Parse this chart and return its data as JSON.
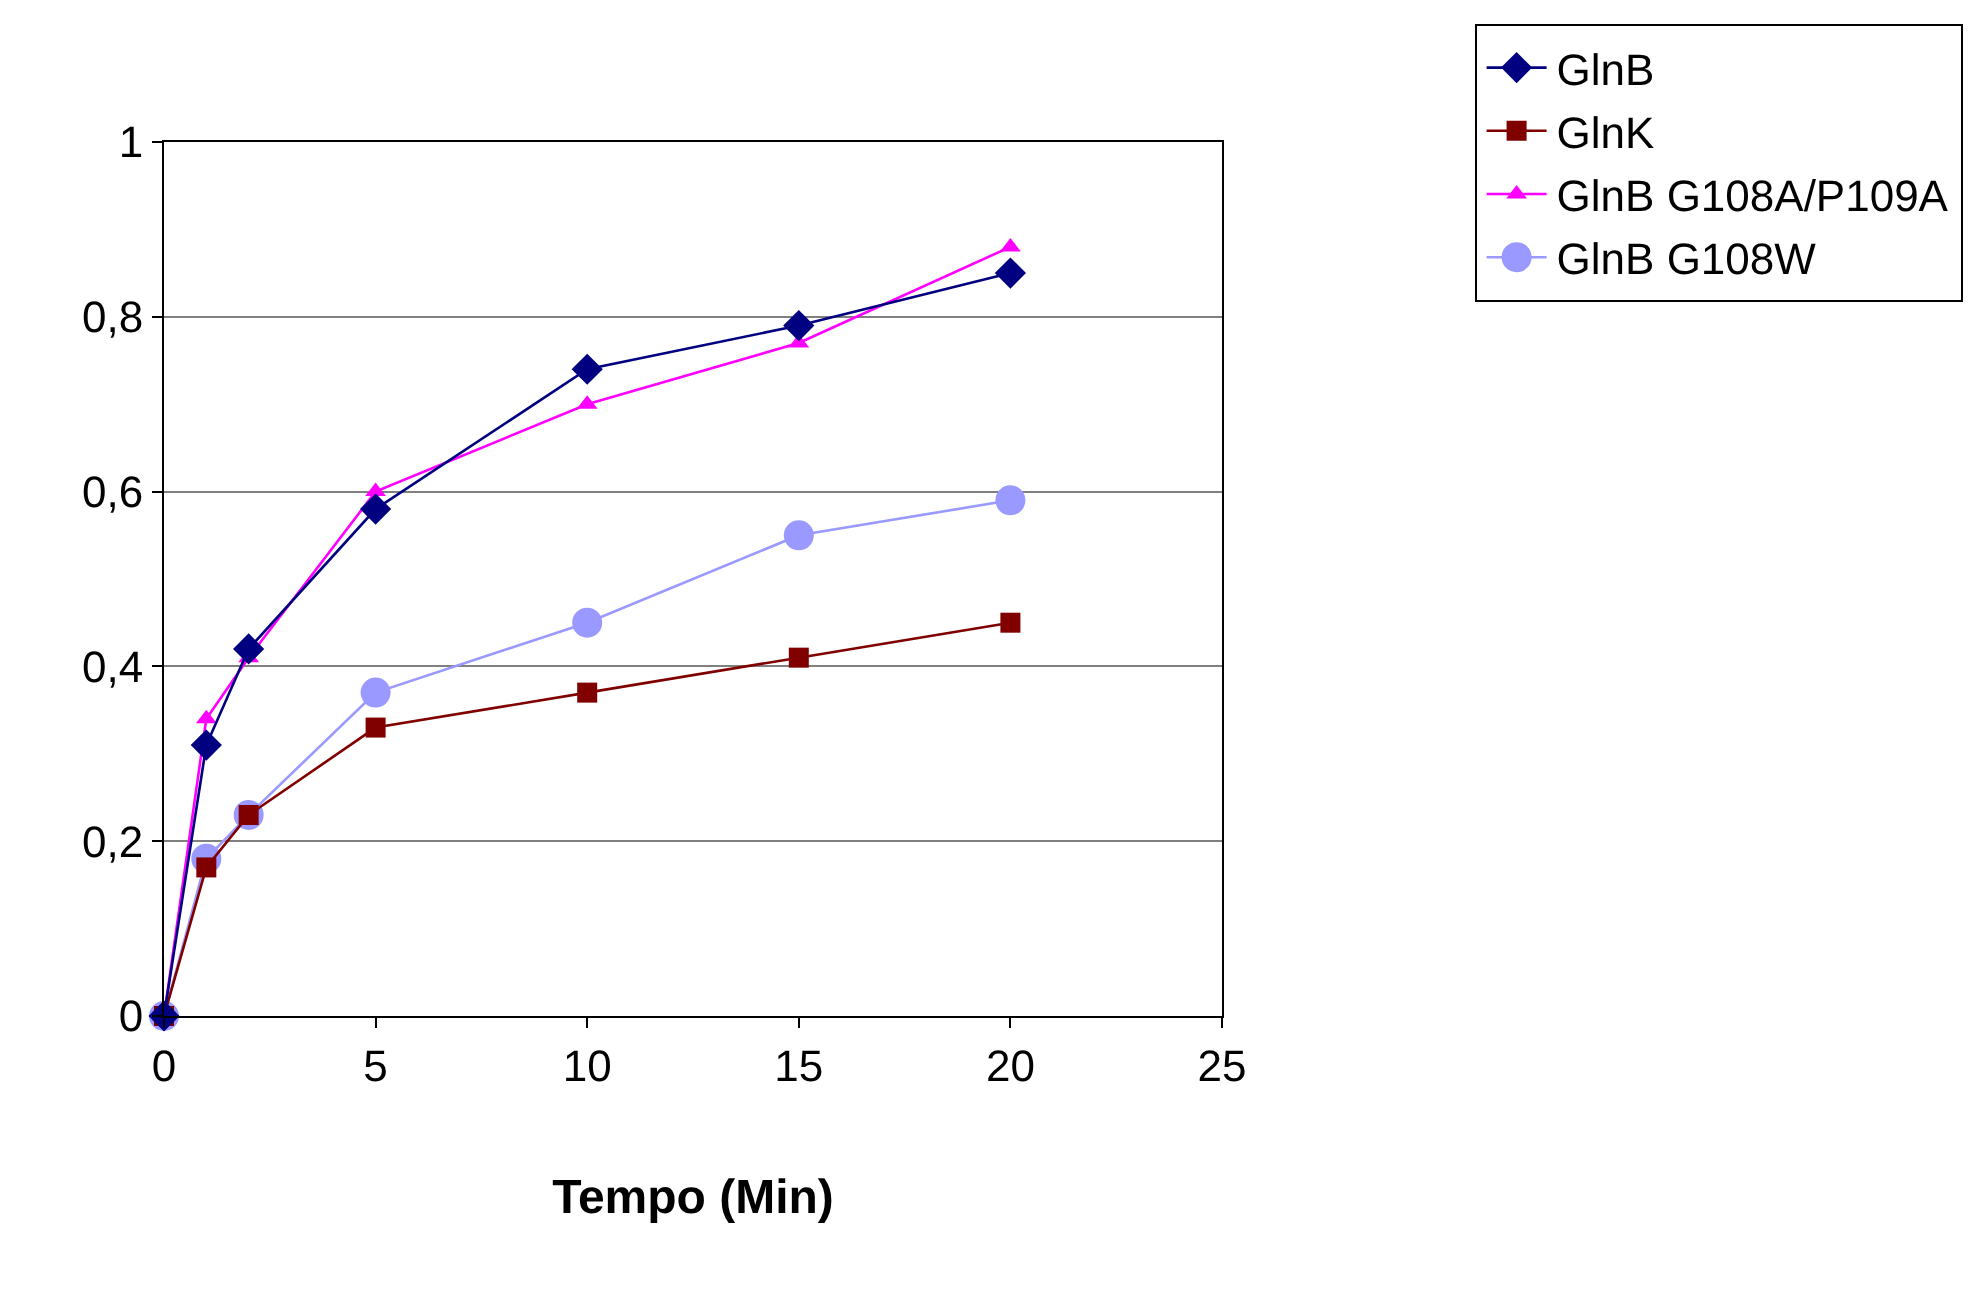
{
  "chart_data": {
    "type": "line",
    "xlabel": "Tempo (Min)",
    "x": [
      0,
      1,
      2,
      5,
      10,
      15,
      20
    ],
    "series": [
      {
        "name": "GlnB",
        "color": "#000080",
        "marker": "diamond",
        "values": [
          0,
          0.31,
          0.42,
          0.58,
          0.74,
          0.79,
          0.85
        ]
      },
      {
        "name": "GlnK",
        "color": "#800000",
        "marker": "square",
        "values": [
          0,
          0.17,
          0.23,
          0.33,
          0.37,
          0.41,
          0.45
        ]
      },
      {
        "name": "GlnB G108A/P109A",
        "color": "#ff00ff",
        "marker": "triangle",
        "values": [
          0,
          0.34,
          0.41,
          0.6,
          0.7,
          0.77,
          0.88
        ]
      },
      {
        "name": "GlnB G108W",
        "color": "#9999ff",
        "marker": "circle",
        "values": [
          0,
          0.18,
          0.23,
          0.37,
          0.45,
          0.55,
          0.59
        ]
      }
    ],
    "xlim": [
      0,
      25
    ],
    "xticks": [
      0,
      5,
      10,
      15,
      20,
      25
    ],
    "ylim": [
      0,
      1
    ],
    "yticks": [
      0,
      {
        "value": 0.2,
        "label": "0,2"
      },
      {
        "value": 0.4,
        "label": "0,4"
      },
      {
        "value": 0.6,
        "label": "0,6"
      },
      {
        "value": 0.8,
        "label": "0,8"
      },
      1
    ],
    "grid": "y",
    "legend": "top right",
    "line_style": "solid"
  }
}
